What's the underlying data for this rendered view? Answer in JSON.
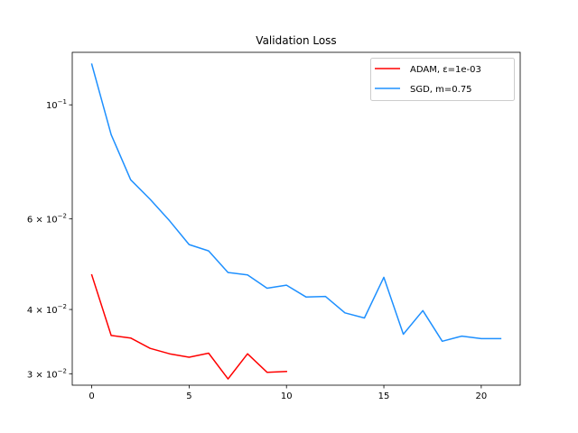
{
  "chart_data": {
    "type": "line",
    "title": "Validation Loss",
    "xlabel": "",
    "ylabel": "",
    "yscale": "log",
    "xlim": [
      -1,
      22
    ],
    "ylim": [
      0.0285,
      0.1265
    ],
    "grid": false,
    "legend_position": "top-right",
    "x_ticks": [
      {
        "value": 0,
        "label": "0"
      },
      {
        "value": 5,
        "label": "5"
      },
      {
        "value": 10,
        "label": "10"
      },
      {
        "value": 15,
        "label": "15"
      },
      {
        "value": 20,
        "label": "20"
      }
    ],
    "y_ticks": [
      {
        "value": 0.03,
        "base": "3",
        "exp": "−2"
      },
      {
        "value": 0.04,
        "base": "4",
        "exp": "−2"
      },
      {
        "value": 0.06,
        "base": "6",
        "exp": "−2"
      },
      {
        "value": 0.1,
        "base": "10",
        "exp": "−1"
      }
    ],
    "series": [
      {
        "name": "ADAM, ε=1e-03",
        "color": "#ff0000",
        "x": [
          0,
          1,
          2,
          3,
          4,
          5,
          6,
          7,
          8,
          9,
          10
        ],
        "values": [
          0.0467,
          0.0356,
          0.0352,
          0.0336,
          0.0328,
          0.0323,
          0.0329,
          0.0293,
          0.0328,
          0.0302,
          0.0303
        ]
      },
      {
        "name": "SGD, m=0.75",
        "color": "#1e90ff",
        "x": [
          0,
          1,
          2,
          3,
          4,
          5,
          6,
          7,
          8,
          9,
          10,
          11,
          12,
          13,
          14,
          15,
          16,
          17,
          18,
          19,
          20,
          21
        ],
        "values": [
          0.12,
          0.0875,
          0.0715,
          0.0655,
          0.0595,
          0.0535,
          0.052,
          0.0472,
          0.0467,
          0.044,
          0.0446,
          0.0423,
          0.0424,
          0.0394,
          0.0385,
          0.0462,
          0.0358,
          0.0398,
          0.0347,
          0.0355,
          0.0351,
          0.0351
        ]
      }
    ]
  }
}
